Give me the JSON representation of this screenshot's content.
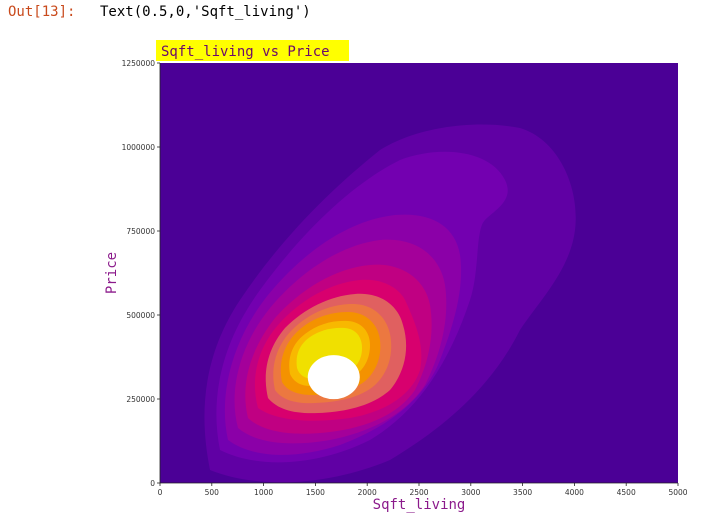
{
  "cell": {
    "prompt": "Out[13]:",
    "output": "Text(0.5,0,'Sqft_living')"
  },
  "colors": {
    "title_bg": "#ffff00",
    "title_fg": "#6b0a6b",
    "axis_label": "#8b1a8b",
    "prompt": "#c94a1c",
    "levels": [
      "#4b0096",
      "#6000a4",
      "#7300b0",
      "#8b00a8",
      "#a4009a",
      "#c00082",
      "#d8006e",
      "#e06060",
      "#ec7840",
      "#f49200",
      "#f8b800",
      "#f0e000",
      "#ffffff"
    ]
  },
  "chart_data": {
    "type": "kde_contour",
    "title": "Sqft_living vs Price",
    "xlabel": "Sqft_living",
    "ylabel": "Price",
    "xlim": [
      0,
      5000
    ],
    "ylim": [
      0,
      1250000
    ],
    "xticks": [
      0,
      500,
      1000,
      1500,
      2000,
      2500,
      3000,
      3500,
      4000,
      4500,
      5000
    ],
    "yticks": [
      0,
      250000,
      500000,
      750000,
      1000000,
      1250000
    ],
    "colormap": "plasma",
    "grid": false,
    "filled": true,
    "levels": 12,
    "density_peak": {
      "x": 1600,
      "y": 330000
    }
  }
}
